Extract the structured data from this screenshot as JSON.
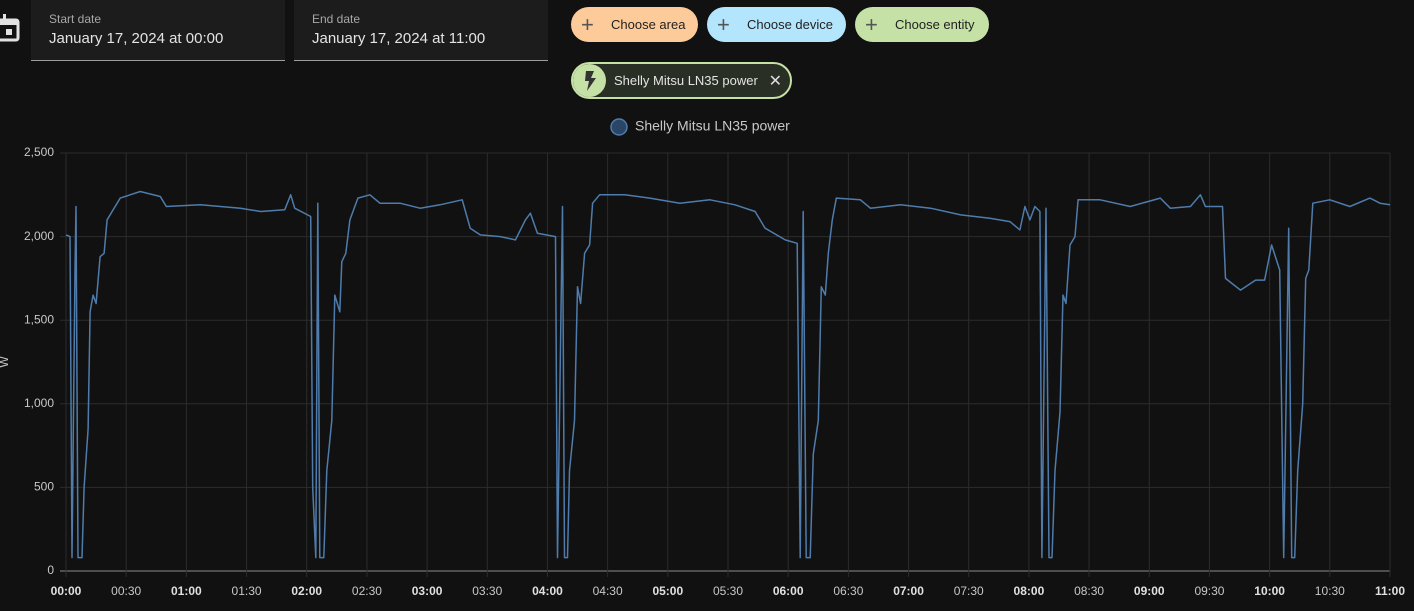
{
  "ui": {
    "start_label": "Start date",
    "start_value": "January 17, 2024 at 00:00",
    "end_label": "End date",
    "end_value": "January 17, 2024 at 11:00",
    "chips": [
      "Choose area",
      "Choose device",
      "Choose entity"
    ],
    "entity_chip": "Shelly Mitsu LN35 power"
  },
  "chart_data": {
    "type": "line",
    "ylabel": "W",
    "xlim": [
      0,
      660
    ],
    "xticks": [
      {
        "value": 0,
        "label": "00:00"
      },
      {
        "value": 30,
        "label": "00:30"
      },
      {
        "value": 60,
        "label": "01:00"
      },
      {
        "value": 90,
        "label": "01:30"
      },
      {
        "value": 120,
        "label": "02:00"
      },
      {
        "value": 150,
        "label": "02:30"
      },
      {
        "value": 180,
        "label": "03:00"
      },
      {
        "value": 210,
        "label": "03:30"
      },
      {
        "value": 240,
        "label": "04:00"
      },
      {
        "value": 270,
        "label": "04:30"
      },
      {
        "value": 300,
        "label": "05:00"
      },
      {
        "value": 330,
        "label": "05:30"
      },
      {
        "value": 360,
        "label": "06:00"
      },
      {
        "value": 390,
        "label": "06:30"
      },
      {
        "value": 420,
        "label": "07:00"
      },
      {
        "value": 450,
        "label": "07:30"
      },
      {
        "value": 480,
        "label": "08:00"
      },
      {
        "value": 510,
        "label": "08:30"
      },
      {
        "value": 540,
        "label": "09:00"
      },
      {
        "value": 570,
        "label": "09:30"
      },
      {
        "value": 600,
        "label": "10:00"
      },
      {
        "value": 630,
        "label": "10:30"
      },
      {
        "value": 660,
        "label": "11:00"
      }
    ],
    "ylim": [
      0,
      2500
    ],
    "yticks": [
      0,
      500,
      {
        "value": 1000,
        "label": "1,000"
      },
      {
        "value": 1500,
        "label": "1,500"
      },
      {
        "value": 2000,
        "label": "2,000"
      },
      {
        "value": 2500,
        "label": "2,500"
      }
    ],
    "grid": true,
    "x": [
      0,
      2,
      3,
      4.5,
      5,
      6,
      8,
      9,
      11,
      12,
      13.5,
      15,
      17,
      19,
      20.5,
      23,
      27,
      32,
      37,
      47,
      50,
      67,
      87,
      97,
      109,
      112,
      114,
      122,
      123,
      124.5,
      125.5,
      126.5,
      128.5,
      130,
      132.5,
      134,
      136.5,
      137.5,
      139.5,
      141.5,
      145.5,
      151.5,
      156.5,
      166.5,
      176.5,
      186.5,
      197.5,
      201.5,
      206.5,
      216.5,
      224,
      229,
      231.5,
      235,
      244,
      245,
      247.5,
      248.5,
      250,
      251,
      253.5,
      255,
      256.5,
      258.5,
      261,
      262.5,
      266,
      278.5,
      291,
      306,
      321,
      333.5,
      343.5,
      348.5,
      358.5,
      364.5,
      366,
      367.5,
      369,
      371,
      372.5,
      375,
      376.5,
      378.5,
      380,
      382,
      384,
      396,
      401,
      416,
      431,
      446,
      460.5,
      470.5,
      475.5,
      478,
      480.5,
      483,
      485.5,
      486.5,
      488.5,
      490,
      491.5,
      493,
      495.5,
      497,
      498.5,
      500.5,
      503,
      504.5,
      515.5,
      530.5,
      545.5,
      550.5,
      560.5,
      565.5,
      568,
      576.5,
      578,
      585.5,
      593,
      597.5,
      601,
      605,
      607,
      609.5,
      611,
      612.5,
      614,
      616.5,
      618,
      619.5,
      621.5,
      630,
      640,
      650,
      655,
      660
    ],
    "series": [
      {
        "name": "Shelly Mitsu LN35 power",
        "color": "#4f7cac",
        "values": [
          2010,
          2000,
          80,
          1800,
          2180,
          80,
          80,
          500,
          850,
          1550,
          1650,
          1600,
          1880,
          1900,
          2100,
          2150,
          2230,
          2250,
          2270,
          2240,
          2180,
          2190,
          2170,
          2150,
          2160,
          2250,
          2170,
          2120,
          500,
          80,
          2200,
          80,
          80,
          600,
          900,
          1650,
          1550,
          1850,
          1900,
          2100,
          2230,
          2250,
          2200,
          2200,
          2170,
          2190,
          2220,
          2050,
          2010,
          2000,
          1980,
          2100,
          2140,
          2020,
          2000,
          80,
          2180,
          80,
          80,
          600,
          900,
          1700,
          1600,
          1900,
          1950,
          2200,
          2250,
          2250,
          2230,
          2200,
          2220,
          2190,
          2150,
          2050,
          1980,
          1960,
          80,
          2150,
          80,
          80,
          700,
          900,
          1700,
          1650,
          1900,
          2100,
          2230,
          2220,
          2170,
          2190,
          2170,
          2130,
          2110,
          2090,
          2040,
          2180,
          2100,
          2180,
          2150,
          80,
          2170,
          80,
          80,
          600,
          950,
          1650,
          1600,
          1950,
          2000,
          2220,
          2220,
          2180,
          2230,
          2170,
          2180,
          2250,
          2180,
          2180,
          1750,
          1680,
          1740,
          1740,
          1950,
          1800,
          80,
          2050,
          80,
          80,
          600,
          1000,
          1750,
          1800,
          2200,
          2220,
          2180,
          2230,
          2200,
          2190
        ]
      }
    ]
  }
}
